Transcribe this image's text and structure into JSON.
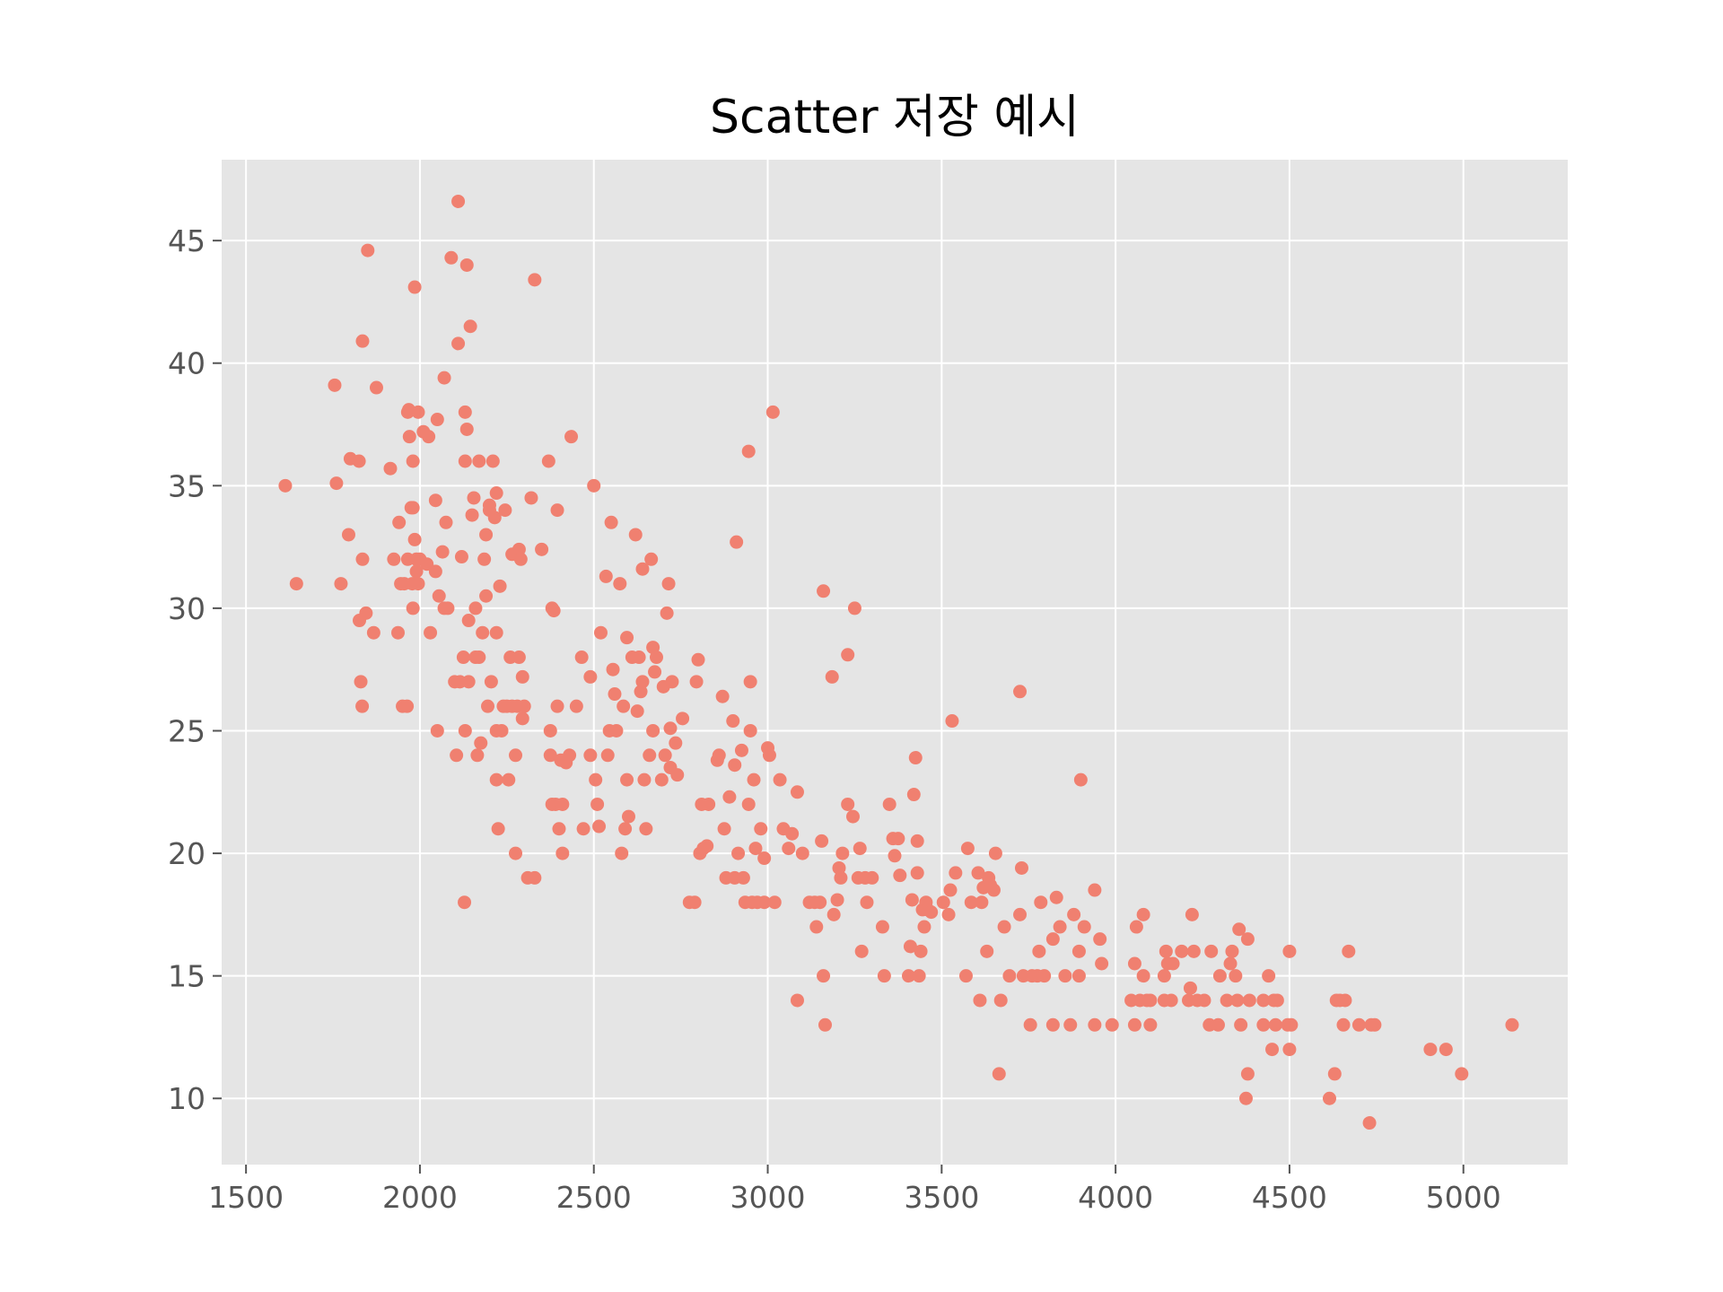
{
  "chart_data": {
    "type": "scatter",
    "title": "Scatter 저장 예시",
    "xlabel": "",
    "ylabel": "",
    "xlim": [
      1430,
      5300
    ],
    "ylim": [
      7.3,
      48.3
    ],
    "x_ticks": [
      1500,
      2000,
      2500,
      3000,
      3500,
      4000,
      4500,
      5000
    ],
    "y_ticks": [
      10,
      15,
      20,
      25,
      30,
      35,
      40,
      45
    ],
    "grid": true,
    "style": "ggplot",
    "colors": {
      "points": "#F08070",
      "background": "#E5E5E5",
      "grid": "#FFFFFF"
    },
    "points": [
      [
        1613,
        35
      ],
      [
        1645,
        31
      ],
      [
        1755,
        39.1
      ],
      [
        1760,
        35.1
      ],
      [
        1773,
        31
      ],
      [
        1795,
        33
      ],
      [
        1800,
        36.1
      ],
      [
        1825,
        36
      ],
      [
        1826,
        29.5
      ],
      [
        1830,
        27
      ],
      [
        1834,
        26
      ],
      [
        1835,
        32
      ],
      [
        1835,
        40.9
      ],
      [
        1845,
        29.8
      ],
      [
        1850,
        44.6
      ],
      [
        1867,
        29
      ],
      [
        1875,
        39
      ],
      [
        1915,
        35.7
      ],
      [
        1925,
        32
      ],
      [
        1937,
        29
      ],
      [
        1940,
        33.5
      ],
      [
        1945,
        31
      ],
      [
        1950,
        26
      ],
      [
        1955,
        31
      ],
      [
        1963,
        26
      ],
      [
        1965,
        38
      ],
      [
        1965,
        32
      ],
      [
        1968,
        38.1
      ],
      [
        1970,
        37
      ],
      [
        1975,
        34.1
      ],
      [
        1978,
        31
      ],
      [
        1980,
        36
      ],
      [
        1980,
        30
      ],
      [
        1980,
        34.1
      ],
      [
        1985,
        43.1
      ],
      [
        1985,
        32.8
      ],
      [
        1990,
        31.5
      ],
      [
        1990,
        32
      ],
      [
        1995,
        38
      ],
      [
        1995,
        31
      ],
      [
        2000,
        32
      ],
      [
        2010,
        37.2
      ],
      [
        2020,
        31.8
      ],
      [
        2025,
        37
      ],
      [
        2030,
        29
      ],
      [
        2045,
        34.4
      ],
      [
        2045,
        31.5
      ],
      [
        2050,
        37.7
      ],
      [
        2050,
        25
      ],
      [
        2055,
        30.5
      ],
      [
        2065,
        32.3
      ],
      [
        2070,
        39.4
      ],
      [
        2070,
        30
      ],
      [
        2075,
        33.5
      ],
      [
        2080,
        30
      ],
      [
        2090,
        44.3
      ],
      [
        2100,
        27
      ],
      [
        2105,
        24
      ],
      [
        2110,
        46.6
      ],
      [
        2110,
        40.8
      ],
      [
        2115,
        27
      ],
      [
        2120,
        32.1
      ],
      [
        2125,
        28
      ],
      [
        2128,
        18
      ],
      [
        2130,
        36
      ],
      [
        2130,
        25
      ],
      [
        2130,
        38
      ],
      [
        2135,
        37.3
      ],
      [
        2135,
        44
      ],
      [
        2140,
        27
      ],
      [
        2140,
        29.5
      ],
      [
        2145,
        41.5
      ],
      [
        2150,
        33.8
      ],
      [
        2155,
        34.5
      ],
      [
        2160,
        30
      ],
      [
        2160,
        28
      ],
      [
        2165,
        24
      ],
      [
        2170,
        36
      ],
      [
        2170,
        28
      ],
      [
        2175,
        24.5
      ],
      [
        2180,
        29
      ],
      [
        2185,
        32
      ],
      [
        2190,
        33
      ],
      [
        2190,
        30.5
      ],
      [
        2195,
        26
      ],
      [
        2200,
        34.2
      ],
      [
        2200,
        34
      ],
      [
        2205,
        27
      ],
      [
        2210,
        36
      ],
      [
        2215,
        33.7
      ],
      [
        2220,
        25
      ],
      [
        2220,
        29
      ],
      [
        2220,
        34.7
      ],
      [
        2220,
        23
      ],
      [
        2225,
        21
      ],
      [
        2230,
        30.9
      ],
      [
        2235,
        25
      ],
      [
        2240,
        26
      ],
      [
        2245,
        34
      ],
      [
        2250,
        26
      ],
      [
        2255,
        23
      ],
      [
        2260,
        28
      ],
      [
        2265,
        26
      ],
      [
        2265,
        32.2
      ],
      [
        2275,
        20
      ],
      [
        2275,
        24
      ],
      [
        2280,
        26
      ],
      [
        2285,
        28
      ],
      [
        2285,
        32.4
      ],
      [
        2290,
        32
      ],
      [
        2295,
        27.2
      ],
      [
        2295,
        25.5
      ],
      [
        2300,
        26
      ],
      [
        2310,
        19
      ],
      [
        2320,
        34.5
      ],
      [
        2330,
        43.4
      ],
      [
        2330,
        19
      ],
      [
        2350,
        32.4
      ],
      [
        2370,
        36
      ],
      [
        2375,
        25
      ],
      [
        2375,
        24
      ],
      [
        2380,
        30
      ],
      [
        2380,
        22
      ],
      [
        2385,
        29.9
      ],
      [
        2390,
        22
      ],
      [
        2395,
        26
      ],
      [
        2395,
        34
      ],
      [
        2400,
        21
      ],
      [
        2405,
        23.8
      ],
      [
        2410,
        20
      ],
      [
        2410,
        22
      ],
      [
        2420,
        23.7
      ],
      [
        2430,
        24
      ],
      [
        2435,
        37
      ],
      [
        2450,
        26
      ],
      [
        2465,
        28
      ],
      [
        2470,
        21
      ],
      [
        2490,
        24
      ],
      [
        2490,
        27.2
      ],
      [
        2500,
        35
      ],
      [
        2505,
        23
      ],
      [
        2510,
        22
      ],
      [
        2515,
        21.1
      ],
      [
        2520,
        29
      ],
      [
        2535,
        31.3
      ],
      [
        2540,
        24
      ],
      [
        2545,
        25
      ],
      [
        2550,
        33.5
      ],
      [
        2555,
        27.5
      ],
      [
        2560,
        26.5
      ],
      [
        2565,
        25
      ],
      [
        2575,
        31
      ],
      [
        2580,
        20
      ],
      [
        2585,
        26
      ],
      [
        2590,
        21
      ],
      [
        2595,
        23
      ],
      [
        2595,
        28.8
      ],
      [
        2600,
        21.5
      ],
      [
        2610,
        28
      ],
      [
        2620,
        33
      ],
      [
        2625,
        25.8
      ],
      [
        2630,
        28
      ],
      [
        2635,
        26.6
      ],
      [
        2640,
        31.6
      ],
      [
        2640,
        27
      ],
      [
        2645,
        23
      ],
      [
        2650,
        21
      ],
      [
        2660,
        24
      ],
      [
        2665,
        32
      ],
      [
        2670,
        25
      ],
      [
        2670,
        28.4
      ],
      [
        2675,
        27.4
      ],
      [
        2680,
        28
      ],
      [
        2695,
        23
      ],
      [
        2700,
        26.8
      ],
      [
        2705,
        24
      ],
      [
        2710,
        29.8
      ],
      [
        2715,
        31
      ],
      [
        2720,
        25.1
      ],
      [
        2720,
        23.5
      ],
      [
        2725,
        27
      ],
      [
        2735,
        24.5
      ],
      [
        2740,
        23.2
      ],
      [
        2755,
        25.5
      ],
      [
        2775,
        18
      ],
      [
        2790,
        18
      ],
      [
        2795,
        27
      ],
      [
        2800,
        27.9
      ],
      [
        2805,
        20
      ],
      [
        2810,
        22
      ],
      [
        2815,
        20.2
      ],
      [
        2825,
        20.3
      ],
      [
        2830,
        22
      ],
      [
        2855,
        23.8
      ],
      [
        2860,
        24
      ],
      [
        2870,
        26.4
      ],
      [
        2875,
        21
      ],
      [
        2880,
        19
      ],
      [
        2890,
        22.3
      ],
      [
        2900,
        25.4
      ],
      [
        2905,
        19
      ],
      [
        2905,
        23.6
      ],
      [
        2910,
        32.7
      ],
      [
        2915,
        20
      ],
      [
        2925,
        24.2
      ],
      [
        2930,
        19
      ],
      [
        2935,
        18
      ],
      [
        2945,
        22
      ],
      [
        2945,
        36.4
      ],
      [
        2950,
        27
      ],
      [
        2950,
        25
      ],
      [
        2955,
        18
      ],
      [
        2960,
        23
      ],
      [
        2965,
        20.2
      ],
      [
        2970,
        18
      ],
      [
        2980,
        21
      ],
      [
        2990,
        19.8
      ],
      [
        2990,
        18
      ],
      [
        3000,
        24.3
      ],
      [
        3005,
        24
      ],
      [
        3015,
        38
      ],
      [
        3020,
        18
      ],
      [
        3035,
        23
      ],
      [
        3045,
        21
      ],
      [
        3060,
        20.2
      ],
      [
        3070,
        20.8
      ],
      [
        3085,
        22.5
      ],
      [
        3085,
        14
      ],
      [
        3100,
        20
      ],
      [
        3120,
        18
      ],
      [
        3135,
        18
      ],
      [
        3140,
        17
      ],
      [
        3150,
        18
      ],
      [
        3155,
        20.5
      ],
      [
        3160,
        15
      ],
      [
        3160,
        30.7
      ],
      [
        3165,
        13
      ],
      [
        3185,
        27.2
      ],
      [
        3190,
        17.5
      ],
      [
        3200,
        18.1
      ],
      [
        3205,
        19.4
      ],
      [
        3210,
        19
      ],
      [
        3215,
        20
      ],
      [
        3230,
        28.1
      ],
      [
        3230,
        22
      ],
      [
        3245,
        21.5
      ],
      [
        3250,
        30
      ],
      [
        3260,
        19
      ],
      [
        3265,
        20.2
      ],
      [
        3270,
        16
      ],
      [
        3280,
        19
      ],
      [
        3285,
        18
      ],
      [
        3300,
        19
      ],
      [
        3330,
        17
      ],
      [
        3335,
        15
      ],
      [
        3350,
        22
      ],
      [
        3360,
        20.6
      ],
      [
        3365,
        19.9
      ],
      [
        3375,
        20.6
      ],
      [
        3380,
        19.1
      ],
      [
        3405,
        15
      ],
      [
        3410,
        16.2
      ],
      [
        3415,
        18.1
      ],
      [
        3420,
        22.4
      ],
      [
        3425,
        23.9
      ],
      [
        3430,
        19.2
      ],
      [
        3430,
        20.5
      ],
      [
        3435,
        15
      ],
      [
        3440,
        16
      ],
      [
        3445,
        17.7
      ],
      [
        3450,
        17
      ],
      [
        3455,
        18
      ],
      [
        3460,
        17.7
      ],
      [
        3470,
        17.6
      ],
      [
        3505,
        18
      ],
      [
        3520,
        17.5
      ],
      [
        3525,
        18.5
      ],
      [
        3530,
        25.4
      ],
      [
        3540,
        19.2
      ],
      [
        3570,
        15
      ],
      [
        3575,
        20.2
      ],
      [
        3585,
        18
      ],
      [
        3605,
        19.2
      ],
      [
        3610,
        14
      ],
      [
        3615,
        18
      ],
      [
        3620,
        18.6
      ],
      [
        3630,
        16
      ],
      [
        3635,
        19
      ],
      [
        3640,
        18.7
      ],
      [
        3650,
        18.5
      ],
      [
        3655,
        20
      ],
      [
        3665,
        11
      ],
      [
        3670,
        14
      ],
      [
        3680,
        17
      ],
      [
        3695,
        15
      ],
      [
        3725,
        26.6
      ],
      [
        3725,
        17.5
      ],
      [
        3730,
        19.4
      ],
      [
        3735,
        15
      ],
      [
        3755,
        13
      ],
      [
        3760,
        15
      ],
      [
        3775,
        15
      ],
      [
        3780,
        16
      ],
      [
        3785,
        18
      ],
      [
        3795,
        15
      ],
      [
        3820,
        13
      ],
      [
        3820,
        16.5
      ],
      [
        3830,
        18.2
      ],
      [
        3840,
        17
      ],
      [
        3855,
        15
      ],
      [
        3870,
        13
      ],
      [
        3880,
        17.5
      ],
      [
        3895,
        15
      ],
      [
        3900,
        23
      ],
      [
        3895,
        16
      ],
      [
        3910,
        17
      ],
      [
        3940,
        18.5
      ],
      [
        3940,
        13
      ],
      [
        3955,
        16.5
      ],
      [
        3960,
        15.5
      ],
      [
        3990,
        13
      ],
      [
        4045,
        14
      ],
      [
        4055,
        15.5
      ],
      [
        4055,
        13
      ],
      [
        4060,
        17
      ],
      [
        4070,
        14
      ],
      [
        4080,
        17.5
      ],
      [
        4080,
        15
      ],
      [
        4090,
        14
      ],
      [
        4100,
        13
      ],
      [
        4100,
        14
      ],
      [
        4140,
        15
      ],
      [
        4140,
        14
      ],
      [
        4145,
        16
      ],
      [
        4150,
        15.5
      ],
      [
        4160,
        14
      ],
      [
        4165,
        15.5
      ],
      [
        4190,
        16
      ],
      [
        4210,
        14
      ],
      [
        4215,
        14.5
      ],
      [
        4220,
        17.5
      ],
      [
        4225,
        16
      ],
      [
        4235,
        14
      ],
      [
        4255,
        14
      ],
      [
        4270,
        13
      ],
      [
        4275,
        16
      ],
      [
        4295,
        13
      ],
      [
        4300,
        15
      ],
      [
        4320,
        14
      ],
      [
        4330,
        15.5
      ],
      [
        4335,
        16
      ],
      [
        4345,
        15
      ],
      [
        4350,
        14
      ],
      [
        4355,
        16.9
      ],
      [
        4360,
        13
      ],
      [
        4375,
        10
      ],
      [
        4380,
        16.5
      ],
      [
        4380,
        11
      ],
      [
        4385,
        14
      ],
      [
        4425,
        14
      ],
      [
        4425,
        13
      ],
      [
        4440,
        15
      ],
      [
        4450,
        12
      ],
      [
        4455,
        14
      ],
      [
        4460,
        13
      ],
      [
        4465,
        14
      ],
      [
        4495,
        13
      ],
      [
        4500,
        12
      ],
      [
        4500,
        16
      ],
      [
        4505,
        13
      ],
      [
        4615,
        10
      ],
      [
        4630,
        11
      ],
      [
        4635,
        14
      ],
      [
        4645,
        14
      ],
      [
        4655,
        13
      ],
      [
        4660,
        14
      ],
      [
        4670,
        16
      ],
      [
        4700,
        13
      ],
      [
        4730,
        9
      ],
      [
        4735,
        13
      ],
      [
        4745,
        13
      ],
      [
        4905,
        12
      ],
      [
        4950,
        12
      ],
      [
        4995,
        11
      ],
      [
        5140,
        13
      ]
    ]
  }
}
